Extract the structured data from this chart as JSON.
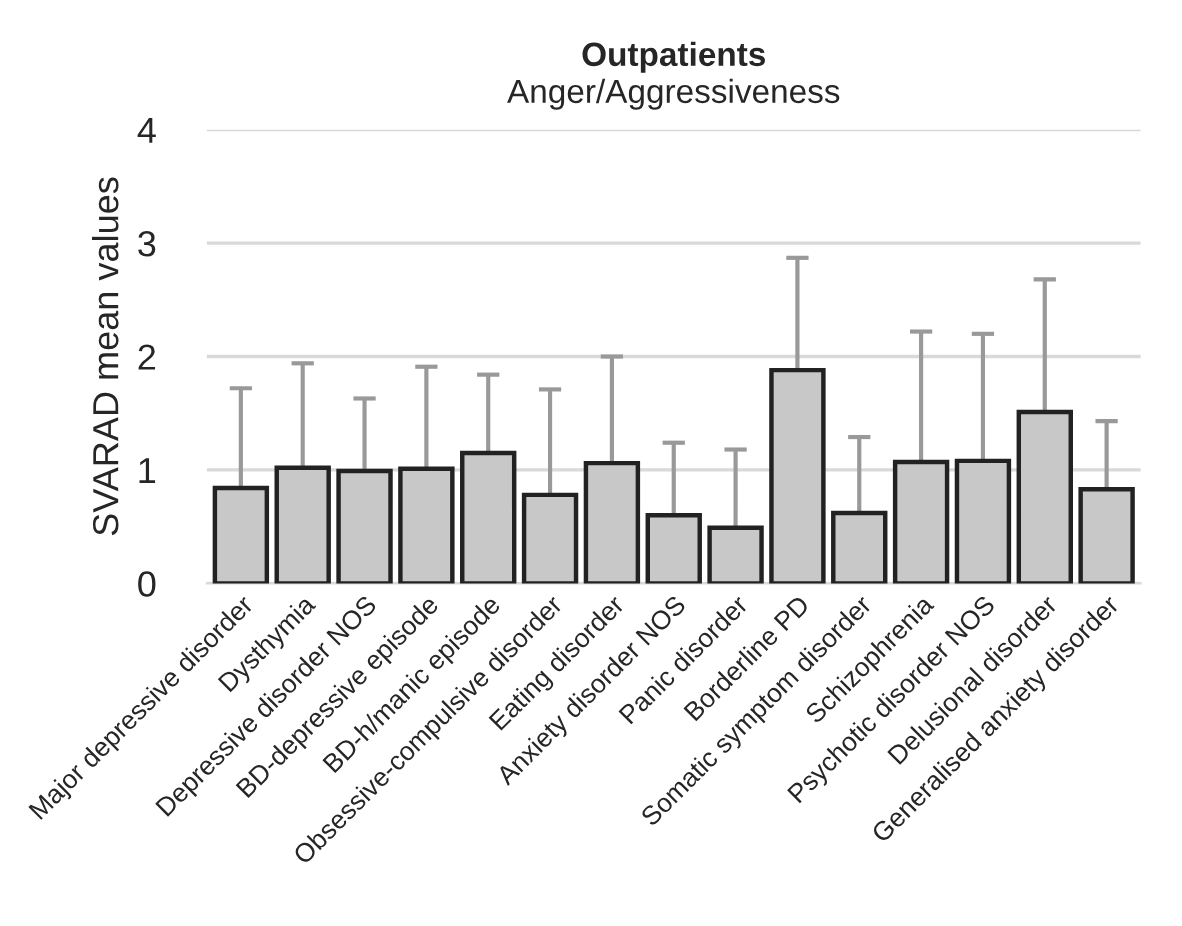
{
  "chart_data": {
    "type": "bar",
    "title": "Outpatients",
    "subtitle": "Anger/Aggressiveness",
    "ylabel": "SVARAD mean values",
    "categories": [
      "Major depressive disorder",
      "Dysthymia",
      "Depressive disorder NOS",
      "BD-depressive episode",
      "BD-h/manic episode",
      "Obsessive-compulsive disorder",
      "Eating disorder",
      "Anxiety disorder NOS",
      "Panic disorder",
      "Borderline PD",
      "Somatic symptom disorder",
      "Schizophrenia",
      "Psychotic disorder NOS",
      "Delusional disorder",
      "Generalised anxiety disorder"
    ],
    "values": [
      0.84,
      1.02,
      0.99,
      1.01,
      1.15,
      0.78,
      1.06,
      0.6,
      0.49,
      1.88,
      0.62,
      1.07,
      1.08,
      1.51,
      0.83
    ],
    "errors": [
      [
        0.84,
        1.72
      ],
      [
        1.02,
        1.94
      ],
      [
        0.99,
        1.63
      ],
      [
        1.01,
        1.91
      ],
      [
        1.15,
        1.84
      ],
      [
        0.78,
        1.71
      ],
      [
        1.06,
        2.0
      ],
      [
        0.6,
        1.24
      ],
      [
        0.49,
        1.18
      ],
      [
        1.88,
        2.87
      ],
      [
        0.62,
        1.29
      ],
      [
        1.07,
        2.22
      ],
      [
        1.08,
        2.2
      ],
      [
        1.51,
        2.68
      ],
      [
        0.83,
        1.43
      ]
    ],
    "color": "#c8c8c8",
    "ylim": [
      0,
      4
    ],
    "yticks": [
      0,
      1,
      2,
      3,
      4
    ],
    "grid": "y"
  }
}
